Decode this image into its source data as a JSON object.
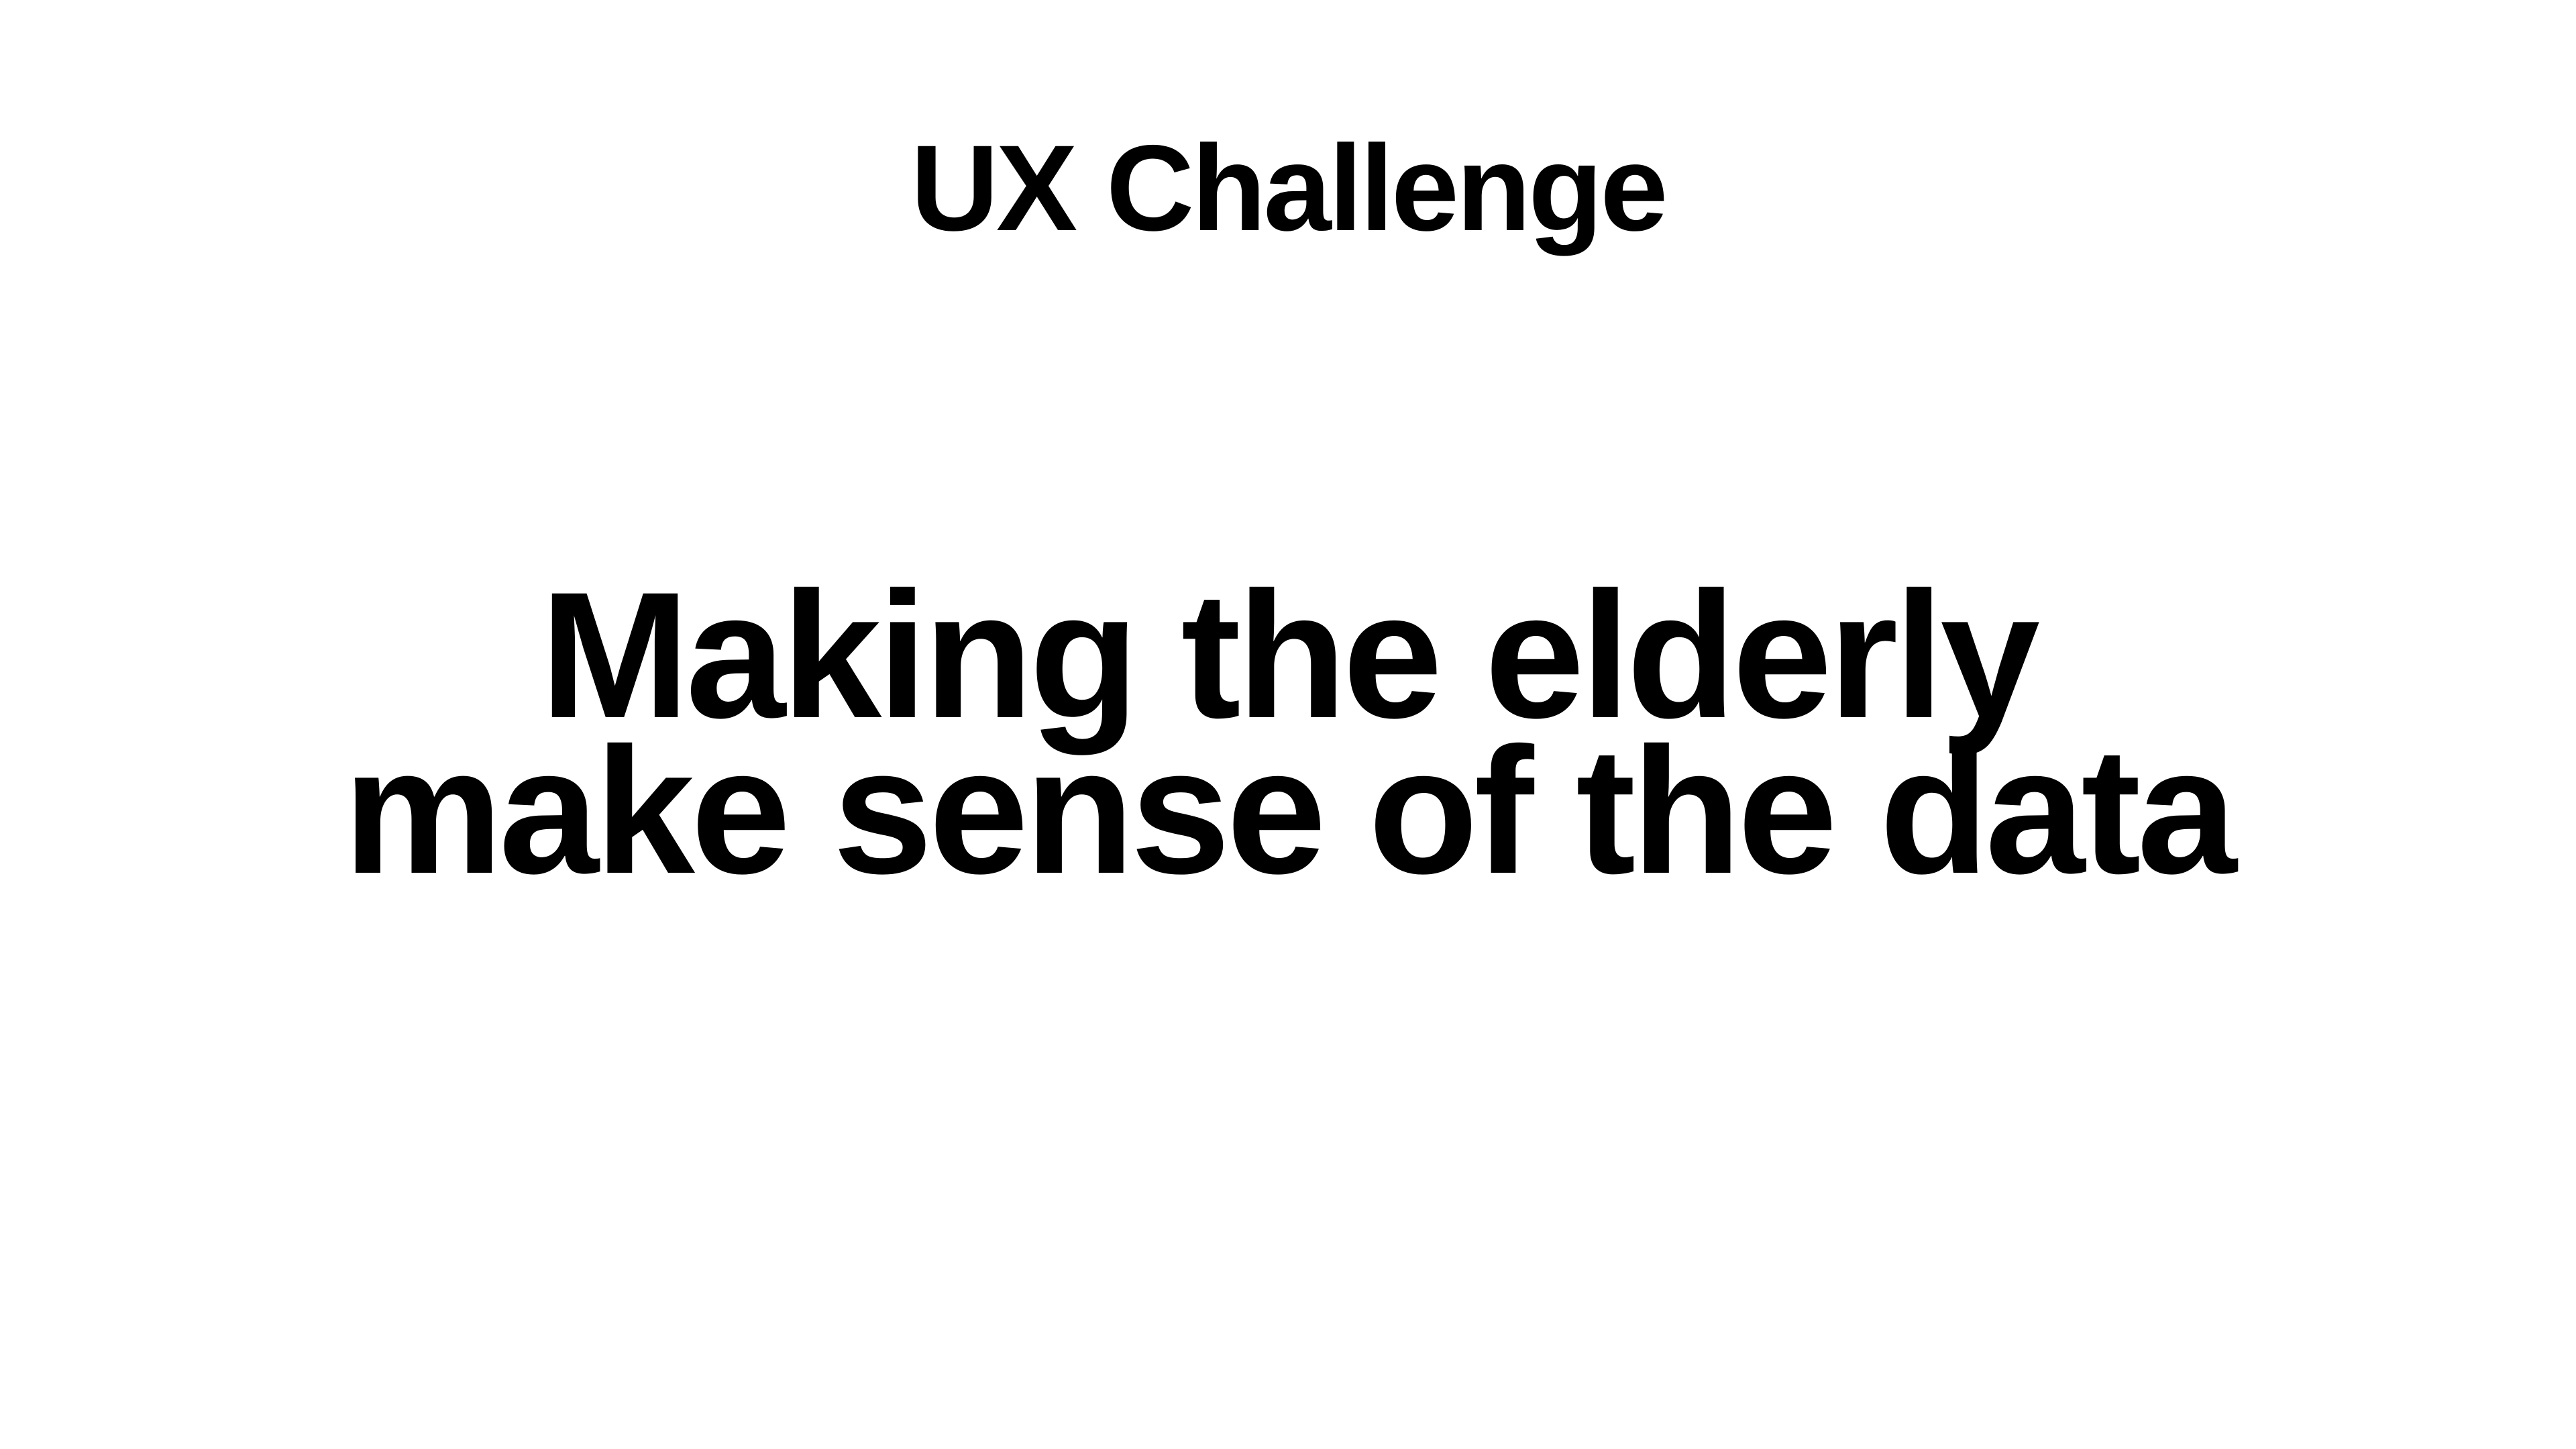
{
  "slide": {
    "title": "UX Challenge",
    "body_lines": [
      "Making the elderly",
      "make sense of the data"
    ]
  }
}
